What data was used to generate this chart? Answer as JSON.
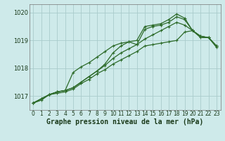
{
  "title": "Graphe pression niveau de la mer (hPa)",
  "bg_color": "#ceeaea",
  "grid_color": "#aacccc",
  "xlim": [
    -0.5,
    23.5
  ],
  "ylim": [
    1016.5,
    1020.3
  ],
  "yticks": [
    1017,
    1018,
    1019,
    1020
  ],
  "xticks": [
    0,
    1,
    2,
    3,
    4,
    5,
    6,
    7,
    8,
    9,
    10,
    11,
    12,
    13,
    14,
    15,
    16,
    17,
    18,
    19,
    20,
    21,
    22,
    23
  ],
  "series": [
    [
      1016.75,
      1016.85,
      1017.05,
      1017.1,
      1017.15,
      1017.25,
      1017.45,
      1017.6,
      1017.8,
      1017.95,
      1018.15,
      1018.3,
      1018.45,
      1018.6,
      1018.8,
      1018.85,
      1018.9,
      1018.95,
      1019.0,
      1019.3,
      1019.35,
      1019.1,
      1019.1,
      1018.75
    ],
    [
      1016.75,
      1016.9,
      1017.05,
      1017.15,
      1017.2,
      1017.3,
      1017.5,
      1017.7,
      1017.9,
      1018.1,
      1018.35,
      1018.55,
      1018.7,
      1018.85,
      1019.05,
      1019.2,
      1019.35,
      1019.5,
      1019.65,
      1019.55,
      1019.35,
      1019.15,
      1019.1,
      1018.8
    ],
    [
      1016.75,
      1016.9,
      1017.05,
      1017.15,
      1017.2,
      1017.85,
      1018.05,
      1018.2,
      1018.4,
      1018.6,
      1018.8,
      1018.9,
      1018.95,
      1018.85,
      1019.4,
      1019.5,
      1019.55,
      1019.65,
      1019.85,
      1019.75,
      1019.35,
      1019.15,
      1019.1,
      1018.8
    ],
    [
      1016.75,
      1016.9,
      1017.05,
      1017.15,
      1017.2,
      1017.3,
      1017.5,
      1017.7,
      1017.9,
      1018.15,
      1018.55,
      1018.8,
      1018.95,
      1019.0,
      1019.5,
      1019.55,
      1019.6,
      1019.75,
      1019.95,
      1019.8,
      1019.35,
      1019.15,
      1019.1,
      1018.8
    ]
  ],
  "colors": [
    "#2d6b2a",
    "#2d6b2a",
    "#2d6b2a",
    "#2d6b2a"
  ],
  "linewidth": 0.9,
  "markersize": 3.0,
  "title_fontsize": 7,
  "tick_fontsize": 5.5
}
